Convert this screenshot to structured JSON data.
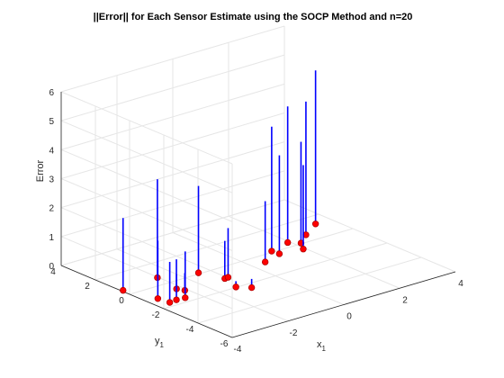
{
  "chart_data": {
    "type": "stem3",
    "title": "||Error|| for Each Sensor Estimate using the SOCP Method and n=20",
    "xlabel": "x",
    "xlabel_sub": "1",
    "ylabel": "y",
    "ylabel_sub": "1",
    "zlabel": "Error",
    "xlim": [
      -4,
      4
    ],
    "ylim": [
      -6,
      4
    ],
    "zlim": [
      0,
      6
    ],
    "xticks": [
      "-4",
      "-2",
      "0",
      "2",
      "4"
    ],
    "yticks": [
      "-6",
      "-4",
      "-2",
      "0",
      "2",
      "4"
    ],
    "zticks": [
      "0",
      "1",
      "2",
      "3",
      "4",
      "5",
      "6"
    ],
    "grid": true,
    "stem_color": "#0000ff",
    "marker_color": "#ff0000",
    "points": [
      {
        "x": -3.94,
        "y": 0.48,
        "z": 2.5
      },
      {
        "x": -3.62,
        "y": -1.03,
        "z": 2.0
      },
      {
        "x": -3.56,
        "y": -1.63,
        "z": 1.4
      },
      {
        "x": -3.0,
        "y": -1.62,
        "z": 1.6
      },
      {
        "x": -3.29,
        "y": -1.58,
        "z": 1.4
      },
      {
        "x": -2.74,
        "y": -0.69,
        "z": 0.5
      },
      {
        "x": -2.64,
        "y": -1.01,
        "z": 0.6
      },
      {
        "x": -2.58,
        "y": 0.69,
        "z": 3.4
      },
      {
        "x": -1.39,
        "y": -1.96,
        "z": 0.2
      },
      {
        "x": -1.09,
        "y": -2.39,
        "z": 0.3
      },
      {
        "x": -1.47,
        "y": 0.1,
        "z": 3.0
      },
      {
        "x": -1.2,
        "y": -1.0,
        "z": 1.3
      },
      {
        "x": -1.07,
        "y": -0.98,
        "z": 1.7
      },
      {
        "x": 0.48,
        "y": -0.62,
        "z": 2.1
      },
      {
        "x": 1.16,
        "y": 0.11,
        "z": 4.3
      },
      {
        "x": 1.19,
        "y": -0.29,
        "z": 3.4
      },
      {
        "x": 1.93,
        "y": 0.43,
        "z": 4.7
      },
      {
        "x": 1.93,
        "y": -0.48,
        "z": 2.9
      },
      {
        "x": 2.18,
        "y": 0.06,
        "z": 3.5
      },
      {
        "x": 2.7,
        "y": 0.62,
        "z": 4.6
      },
      {
        "x": 3.45,
        "y": 1.28,
        "z": 5.3
      }
    ]
  }
}
